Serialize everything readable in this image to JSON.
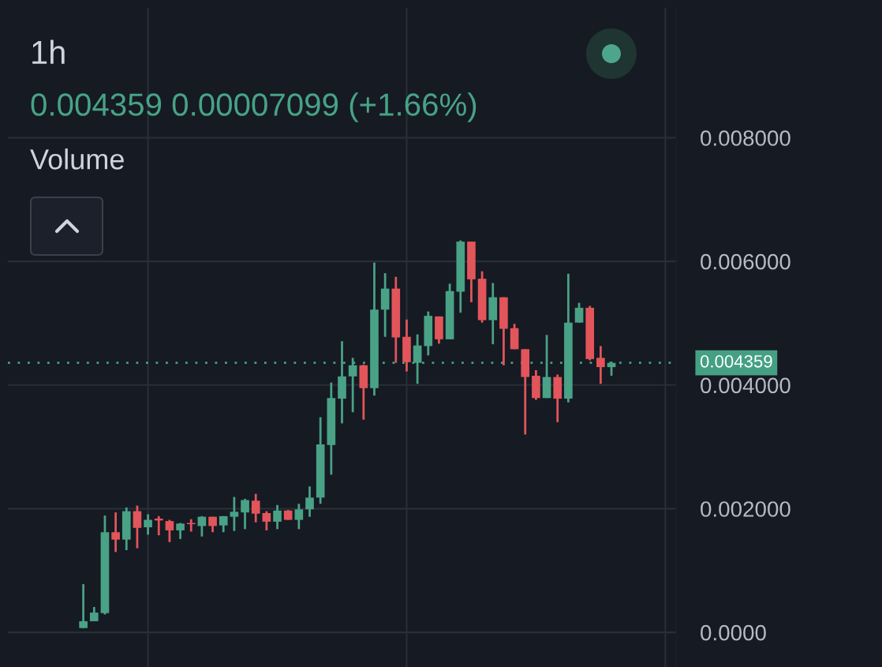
{
  "chart_data": {
    "type": "candlestick",
    "title": "1h",
    "subtitle": "0.004359 0.00007099 (+1.66%)",
    "annotations": [
      "Volume"
    ],
    "categories": [
      null,
      null,
      null,
      null,
      null,
      null,
      null,
      null,
      null,
      null,
      null,
      null,
      null,
      null,
      null,
      null,
      null,
      null,
      null,
      null,
      null,
      null,
      null,
      null,
      null,
      null,
      null,
      null,
      null,
      null,
      null,
      null,
      null,
      null,
      null,
      null,
      null,
      null,
      null,
      null,
      null,
      null,
      null,
      null,
      null,
      null,
      null,
      null,
      null,
      null
    ],
    "ohlc": [
      [
        7e-05,
        0.00078,
        7e-05,
        0.00018
      ],
      [
        0.00018,
        0.00041,
        0.00018,
        0.00032
      ],
      [
        0.00031,
        0.00189,
        0.00029,
        0.00162
      ],
      [
        0.00162,
        0.00194,
        0.0013,
        0.0015
      ],
      [
        0.0015,
        0.00202,
        0.00133,
        0.00196
      ],
      [
        0.00196,
        0.00205,
        0.00136,
        0.00169
      ],
      [
        0.0017,
        0.00191,
        0.00158,
        0.00182
      ],
      [
        0.00184,
        0.00188,
        0.00157,
        0.00181
      ],
      [
        0.0018,
        0.00182,
        0.00146,
        0.00165
      ],
      [
        0.00165,
        0.00177,
        0.00151,
        0.00176
      ],
      [
        0.00177,
        0.00183,
        0.00163,
        0.00175
      ],
      [
        0.00172,
        0.00188,
        0.00155,
        0.00187
      ],
      [
        0.00187,
        0.00187,
        0.00162,
        0.00172
      ],
      [
        0.00173,
        0.00188,
        0.00162,
        0.00188
      ],
      [
        0.00187,
        0.00219,
        0.00164,
        0.00195
      ],
      [
        0.00194,
        0.00216,
        0.00167,
        0.00214
      ],
      [
        0.00213,
        0.00224,
        0.00178,
        0.00192
      ],
      [
        0.00193,
        0.00196,
        0.00165,
        0.00179
      ],
      [
        0.00179,
        0.00206,
        0.00167,
        0.00197
      ],
      [
        0.00197,
        0.00198,
        0.00182,
        0.00182
      ],
      [
        0.00182,
        0.00208,
        0.00167,
        0.00199
      ],
      [
        0.00199,
        0.00236,
        0.00187,
        0.00218
      ],
      [
        0.00218,
        0.00348,
        0.00208,
        0.00304
      ],
      [
        0.00303,
        0.00404,
        0.00255,
        0.00379
      ],
      [
        0.00378,
        0.00471,
        0.00338,
        0.00414
      ],
      [
        0.00414,
        0.00444,
        0.00356,
        0.00432
      ],
      [
        0.00432,
        0.00433,
        0.00344,
        0.00395
      ],
      [
        0.00395,
        0.00598,
        0.00383,
        0.00522
      ],
      [
        0.00522,
        0.00581,
        0.00478,
        0.00556
      ],
      [
        0.00556,
        0.00575,
        0.00436,
        0.00477
      ],
      [
        0.00478,
        0.00506,
        0.00422,
        0.00437
      ],
      [
        0.00436,
        0.00482,
        0.00402,
        0.00464
      ],
      [
        0.00463,
        0.00519,
        0.00448,
        0.00512
      ],
      [
        0.00511,
        0.00511,
        0.00467,
        0.00474
      ],
      [
        0.00474,
        0.00564,
        0.00474,
        0.00552
      ],
      [
        0.00551,
        0.00634,
        0.00517,
        0.00632
      ],
      [
        0.00632,
        0.00632,
        0.00534,
        0.00571
      ],
      [
        0.00572,
        0.00584,
        0.00501,
        0.00505
      ],
      [
        0.00505,
        0.00565,
        0.00466,
        0.00542
      ],
      [
        0.00542,
        0.00542,
        0.00432,
        0.00491
      ],
      [
        0.00492,
        0.00499,
        0.00458,
        0.00458
      ],
      [
        0.00458,
        0.00458,
        0.0032,
        0.00413
      ],
      [
        0.00415,
        0.00424,
        0.00376,
        0.00379
      ],
      [
        0.00379,
        0.00481,
        0.00379,
        0.00413
      ],
      [
        0.00413,
        0.00417,
        0.0034,
        0.00378
      ],
      [
        0.00378,
        0.0058,
        0.00372,
        0.00501
      ],
      [
        0.00501,
        0.00533,
        0.00501,
        0.00525
      ],
      [
        0.00525,
        0.00528,
        0.0044,
        0.00442
      ],
      [
        0.00444,
        0.00463,
        0.00402,
        0.00429
      ],
      [
        0.00429,
        0.00438,
        0.00415,
        0.004359
      ]
    ],
    "colors": [
      "#49a286",
      "#49a286",
      "#49a286",
      "#e2555a",
      "#49a286",
      "#e2555a",
      "#49a286",
      "#e2555a",
      "#e2555a",
      "#49a286",
      "#e2555a",
      "#49a286",
      "#e2555a",
      "#49a286",
      "#49a286",
      "#49a286",
      "#e2555a",
      "#e2555a",
      "#49a286",
      "#e2555a",
      "#49a286",
      "#49a286",
      "#49a286",
      "#49a286",
      "#49a286",
      "#49a286",
      "#e2555a",
      "#49a286",
      "#49a286",
      "#e2555a",
      "#e2555a",
      "#49a286",
      "#49a286",
      "#e2555a",
      "#49a286",
      "#49a286",
      "#e2555a",
      "#e2555a",
      "#49a286",
      "#e2555a",
      "#e2555a",
      "#e2555a",
      "#e2555a",
      "#49a286",
      "#e2555a",
      "#49a286",
      "#49a286",
      "#e2555a",
      "#e2555a",
      "#49a286"
    ],
    "ylim": [
      -0.00056,
      0.0101
    ],
    "yticks": [
      {
        "value": 0,
        "label": "0.0000"
      },
      {
        "value": 0.002,
        "label": "0.002000"
      },
      {
        "value": 0.004,
        "label": "0.004000"
      },
      {
        "value": 0.006,
        "label": "0.006000"
      },
      {
        "value": 0.008,
        "label": "0.008000"
      }
    ],
    "grid": true,
    "tick_labels": "y",
    "ref_lines": [
      {
        "axis": "y",
        "value": 0.004359,
        "label": "0.004359",
        "color": "#45a083",
        "line_style": "dotted"
      }
    ]
  }
}
